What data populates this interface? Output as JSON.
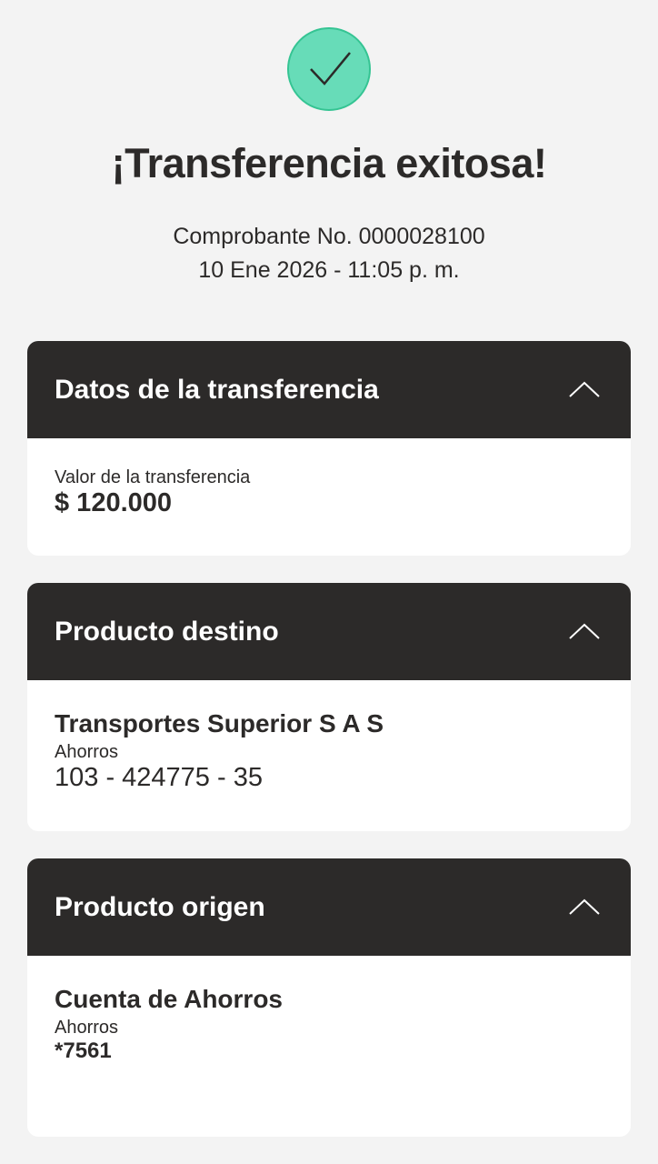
{
  "status": {
    "icon": "check-icon",
    "title": "¡Transferencia exitosa!",
    "receipt": "Comprobante No. 0000028100",
    "datetime": "10 Ene 2026 - 11:05 p. m.",
    "success_color": "#67dcb8"
  },
  "transfer": {
    "header": "Datos de la transferencia",
    "value_label": "Valor de la transferencia",
    "value": "$ 120.000"
  },
  "destination": {
    "header": "Producto destino",
    "name": "Transportes Superior S A S",
    "type": "Ahorros",
    "number": "103 - 424775 - 35"
  },
  "origin": {
    "header": "Producto origen",
    "name": "Cuenta de Ahorros",
    "type": "Ahorros",
    "number": "*7561"
  }
}
